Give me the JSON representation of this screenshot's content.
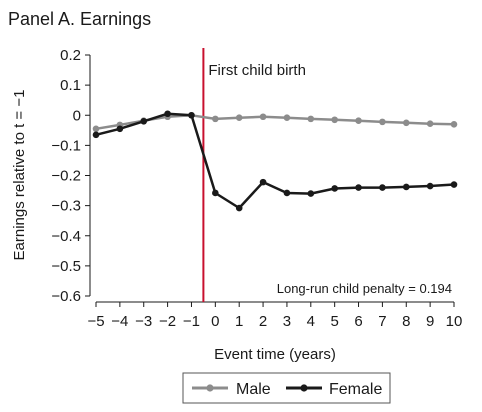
{
  "chart_data": {
    "type": "line",
    "title": "Panel A. Earnings",
    "xlabel": "Event time (years)",
    "ylabel": "Earnings relative to t = −1",
    "x": [
      -5,
      -4,
      -3,
      -2,
      -1,
      0,
      1,
      2,
      3,
      4,
      5,
      6,
      7,
      8,
      9,
      10
    ],
    "x_tick_labels": [
      "−5",
      "−4",
      "−3",
      "−2",
      "−1",
      "0",
      "1",
      "2",
      "3",
      "4",
      "5",
      "6",
      "7",
      "8",
      "9",
      "10"
    ],
    "xlim": [
      -5,
      10
    ],
    "ylim": [
      -0.6,
      0.2
    ],
    "y_ticks": [
      0.2,
      0.1,
      0,
      -0.1,
      -0.2,
      -0.3,
      -0.4,
      -0.5,
      -0.6
    ],
    "y_tick_labels": [
      "0.2",
      "0.1",
      "0",
      "−0.1",
      "−0.2",
      "−0.3",
      "−0.4",
      "−0.5",
      "−0.6"
    ],
    "series": [
      {
        "name": "Male",
        "color": "#8c8c8c",
        "values": [
          -0.045,
          -0.032,
          -0.018,
          -0.005,
          0.0,
          -0.012,
          -0.008,
          -0.005,
          -0.008,
          -0.012,
          -0.015,
          -0.018,
          -0.022,
          -0.025,
          -0.028,
          -0.03
        ]
      },
      {
        "name": "Female",
        "color": "#1a1a1a",
        "values": [
          -0.065,
          -0.045,
          -0.02,
          0.005,
          0.0,
          -0.258,
          -0.308,
          -0.222,
          -0.258,
          -0.26,
          -0.243,
          -0.24,
          -0.24,
          -0.238,
          -0.235,
          -0.23
        ]
      }
    ],
    "event_line": {
      "x": -0.5,
      "label": "First child birth",
      "color": "#c8102e"
    },
    "annotation": "Long-run child penalty = 0.194",
    "grid": false,
    "legend_position": "bottom"
  }
}
